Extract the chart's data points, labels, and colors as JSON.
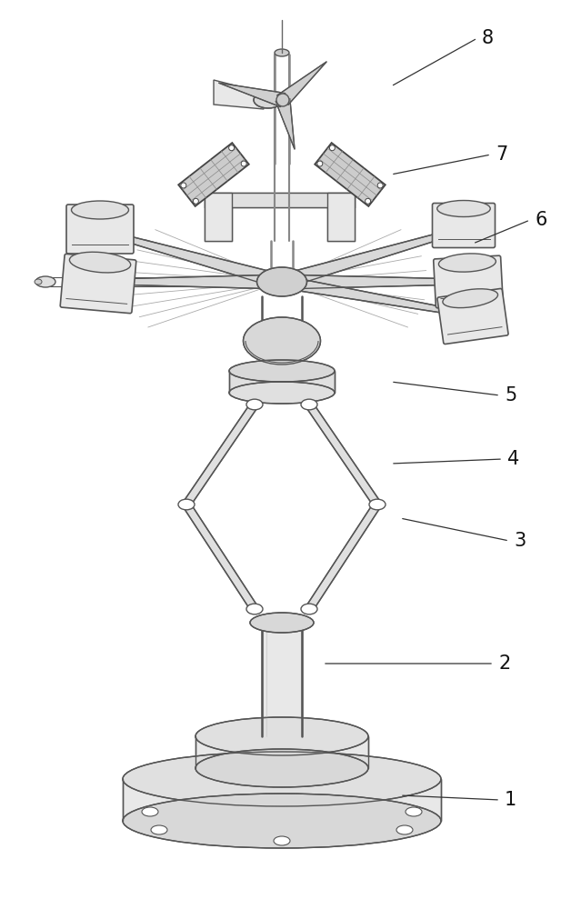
{
  "bg_color": "#ffffff",
  "line_color": "#555555",
  "label_color": "#111111",
  "figsize": [
    6.28,
    10.0
  ],
  "dpi": 100,
  "label_fontsize": 15,
  "line_width": 1.0,
  "thick_line": 1.8
}
